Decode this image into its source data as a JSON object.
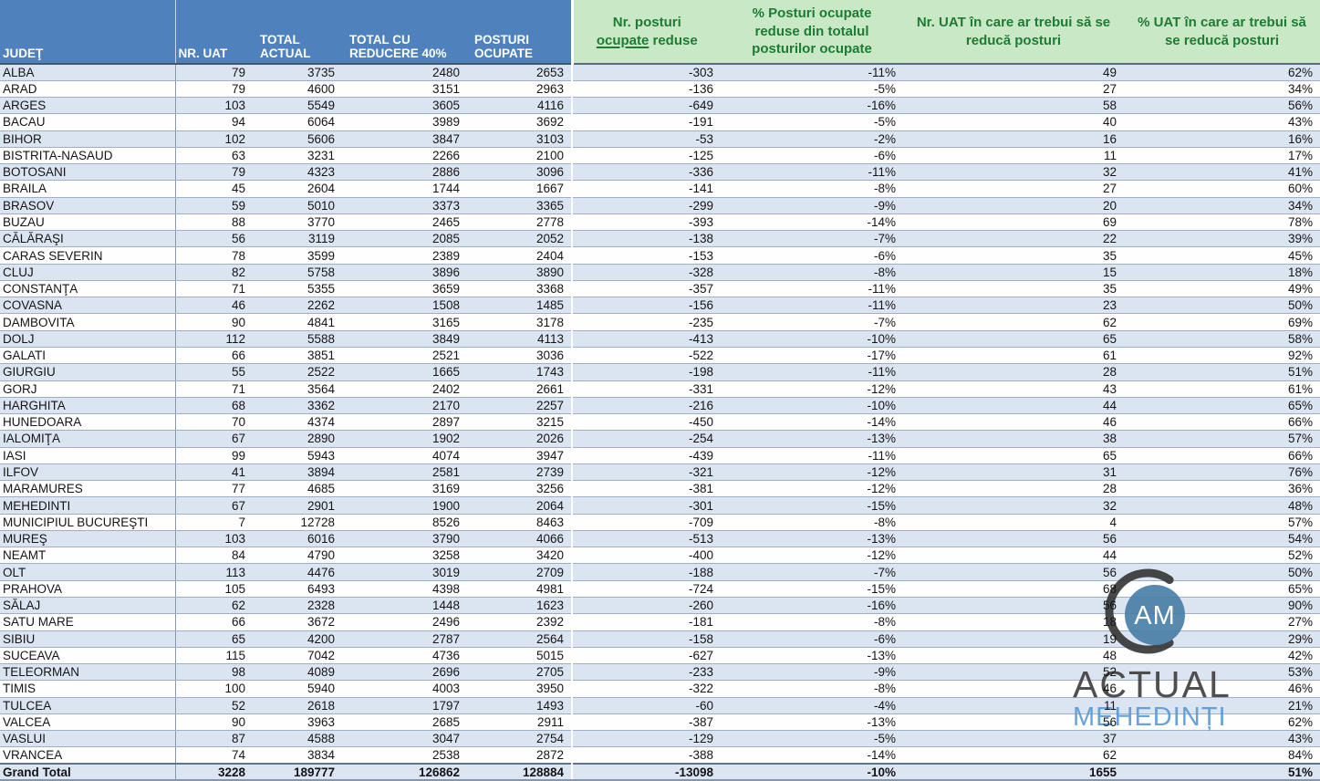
{
  "table": {
    "columns": [
      {
        "key": "judet",
        "group": "blue",
        "label_lines": [
          "JUDEŢ"
        ]
      },
      {
        "key": "nr_uat",
        "group": "blue",
        "label_lines": [
          "NR. UAT"
        ]
      },
      {
        "key": "total_actual",
        "group": "blue",
        "label_lines": [
          "TOTAL",
          "ACTUAL"
        ]
      },
      {
        "key": "total_cu_reducere_40",
        "group": "blue",
        "label_lines": [
          "TOTAL CU",
          "REDUCERE 40%"
        ]
      },
      {
        "key": "posturi_ocupate",
        "group": "blue",
        "label_lines": [
          "POSTURI",
          "OCUPATE"
        ]
      },
      {
        "key": "nr_posturi_ocupate_reduse",
        "group": "green",
        "label_lines": [
          "Nr. posturi",
          {
            "underline": "ocupate",
            "after": " reduse"
          }
        ]
      },
      {
        "key": "pct_posturi_reduse",
        "group": "green",
        "label_lines": [
          "% Posturi ocupate",
          "reduse din totalul",
          "posturilor ocupate"
        ]
      },
      {
        "key": "nr_uat_reducere",
        "group": "green",
        "label_lines": [
          "Nr. UAT în care ar trebui să se",
          "reducă posturi"
        ]
      },
      {
        "key": "pct_uat_reducere",
        "group": "green",
        "label_lines": [
          "% UAT în care ar trebui să",
          "se reducă posturi"
        ]
      }
    ],
    "rows": [
      [
        "ALBA",
        "79",
        "3735",
        "2480",
        "2653",
        "-303",
        "-11%",
        "49",
        "62%"
      ],
      [
        "ARAD",
        "79",
        "4600",
        "3151",
        "2963",
        "-136",
        "-5%",
        "27",
        "34%"
      ],
      [
        "ARGES",
        "103",
        "5549",
        "3605",
        "4116",
        "-649",
        "-16%",
        "58",
        "56%"
      ],
      [
        "BACAU",
        "94",
        "6064",
        "3989",
        "3692",
        "-191",
        "-5%",
        "40",
        "43%"
      ],
      [
        "BIHOR",
        "102",
        "5606",
        "3847",
        "3103",
        "-53",
        "-2%",
        "16",
        "16%"
      ],
      [
        "BISTRITA-NASAUD",
        "63",
        "3231",
        "2266",
        "2100",
        "-125",
        "-6%",
        "11",
        "17%"
      ],
      [
        "BOTOSANI",
        "79",
        "4323",
        "2886",
        "3096",
        "-336",
        "-11%",
        "32",
        "41%"
      ],
      [
        "BRAILA",
        "45",
        "2604",
        "1744",
        "1667",
        "-141",
        "-8%",
        "27",
        "60%"
      ],
      [
        "BRASOV",
        "59",
        "5010",
        "3373",
        "3365",
        "-299",
        "-9%",
        "20",
        "34%"
      ],
      [
        "BUZAU",
        "88",
        "3770",
        "2465",
        "2778",
        "-393",
        "-14%",
        "69",
        "78%"
      ],
      [
        "CĂLĂRAŞI",
        "56",
        "3119",
        "2085",
        "2052",
        "-138",
        "-7%",
        "22",
        "39%"
      ],
      [
        "CARAS SEVERIN",
        "78",
        "3599",
        "2389",
        "2404",
        "-153",
        "-6%",
        "35",
        "45%"
      ],
      [
        "CLUJ",
        "82",
        "5758",
        "3896",
        "3890",
        "-328",
        "-8%",
        "15",
        "18%"
      ],
      [
        "CONSTANŢA",
        "71",
        "5355",
        "3659",
        "3368",
        "-357",
        "-11%",
        "35",
        "49%"
      ],
      [
        "COVASNA",
        "46",
        "2262",
        "1508",
        "1485",
        "-156",
        "-11%",
        "23",
        "50%"
      ],
      [
        "DAMBOVITA",
        "90",
        "4841",
        "3165",
        "3178",
        "-235",
        "-7%",
        "62",
        "69%"
      ],
      [
        "DOLJ",
        "112",
        "5588",
        "3849",
        "4113",
        "-413",
        "-10%",
        "65",
        "58%"
      ],
      [
        "GALATI",
        "66",
        "3851",
        "2521",
        "3036",
        "-522",
        "-17%",
        "61",
        "92%"
      ],
      [
        "GIURGIU",
        "55",
        "2522",
        "1665",
        "1743",
        "-198",
        "-11%",
        "28",
        "51%"
      ],
      [
        "GORJ",
        "71",
        "3564",
        "2402",
        "2661",
        "-331",
        "-12%",
        "43",
        "61%"
      ],
      [
        "HARGHITA",
        "68",
        "3362",
        "2170",
        "2257",
        "-216",
        "-10%",
        "44",
        "65%"
      ],
      [
        "HUNEDOARA",
        "70",
        "4374",
        "2897",
        "3215",
        "-450",
        "-14%",
        "46",
        "66%"
      ],
      [
        "IALOMIŢA",
        "67",
        "2890",
        "1902",
        "2026",
        "-254",
        "-13%",
        "38",
        "57%"
      ],
      [
        "IASI",
        "99",
        "5943",
        "4074",
        "3947",
        "-439",
        "-11%",
        "65",
        "66%"
      ],
      [
        "ILFOV",
        "41",
        "3894",
        "2581",
        "2739",
        "-321",
        "-12%",
        "31",
        "76%"
      ],
      [
        "MARAMURES",
        "77",
        "4685",
        "3169",
        "3256",
        "-381",
        "-12%",
        "28",
        "36%"
      ],
      [
        "MEHEDINTI",
        "67",
        "2901",
        "1900",
        "2064",
        "-301",
        "-15%",
        "32",
        "48%"
      ],
      [
        "MUNICIPIUL BUCUREŞTI",
        "7",
        "12728",
        "8526",
        "8463",
        "-709",
        "-8%",
        "4",
        "57%"
      ],
      [
        "MUREŞ",
        "103",
        "6016",
        "3790",
        "4066",
        "-513",
        "-13%",
        "56",
        "54%"
      ],
      [
        "NEAMT",
        "84",
        "4790",
        "3258",
        "3420",
        "-400",
        "-12%",
        "44",
        "52%"
      ],
      [
        "OLT",
        "113",
        "4476",
        "3019",
        "2709",
        "-188",
        "-7%",
        "56",
        "50%"
      ],
      [
        "PRAHOVA",
        "105",
        "6493",
        "4398",
        "4981",
        "-724",
        "-15%",
        "68",
        "65%"
      ],
      [
        "SĂLAJ",
        "62",
        "2328",
        "1448",
        "1623",
        "-260",
        "-16%",
        "56",
        "90%"
      ],
      [
        "SATU MARE",
        "66",
        "3672",
        "2496",
        "2392",
        "-181",
        "-8%",
        "18",
        "27%"
      ],
      [
        "SIBIU",
        "65",
        "4200",
        "2787",
        "2564",
        "-158",
        "-6%",
        "19",
        "29%"
      ],
      [
        "SUCEAVA",
        "115",
        "7042",
        "4736",
        "5015",
        "-627",
        "-13%",
        "48",
        "42%"
      ],
      [
        "TELEORMAN",
        "98",
        "4089",
        "2696",
        "2705",
        "-233",
        "-9%",
        "52",
        "53%"
      ],
      [
        "TIMIS",
        "100",
        "5940",
        "4003",
        "3950",
        "-322",
        "-8%",
        "46",
        "46%"
      ],
      [
        "TULCEA",
        "52",
        "2618",
        "1797",
        "1493",
        "-60",
        "-4%",
        "11",
        "21%"
      ],
      [
        "VALCEA",
        "90",
        "3963",
        "2685",
        "2911",
        "-387",
        "-13%",
        "56",
        "62%"
      ],
      [
        "VASLUI",
        "87",
        "4588",
        "3047",
        "2754",
        "-129",
        "-5%",
        "37",
        "43%"
      ],
      [
        "VRANCEA",
        "74",
        "3834",
        "2538",
        "2872",
        "-388",
        "-14%",
        "62",
        "84%"
      ]
    ],
    "grand_total": [
      "Grand Total",
      "3228",
      "189777",
      "126862",
      "128884",
      "-13098",
      "-10%",
      "1655",
      "51%"
    ]
  },
  "logo": {
    "monogram": "AM",
    "title": "ACTUAL",
    "subtitle": "MEHEDINȚI"
  },
  "colors": {
    "header_blue_bg": "#4f81bd",
    "header_blue_text": "#ffffff",
    "header_green_bg": "#c9e8c6",
    "header_green_text": "#1e7b34",
    "row_alt_bg": "#dbe5f1",
    "row_bg": "#fefefe",
    "grand_total_bg": "#dce6f1",
    "logo_circle": "#4a80a8",
    "logo_crescent": "#383838",
    "logo_title_text": "#414141",
    "logo_subtitle_text": "#5b9bd5"
  }
}
